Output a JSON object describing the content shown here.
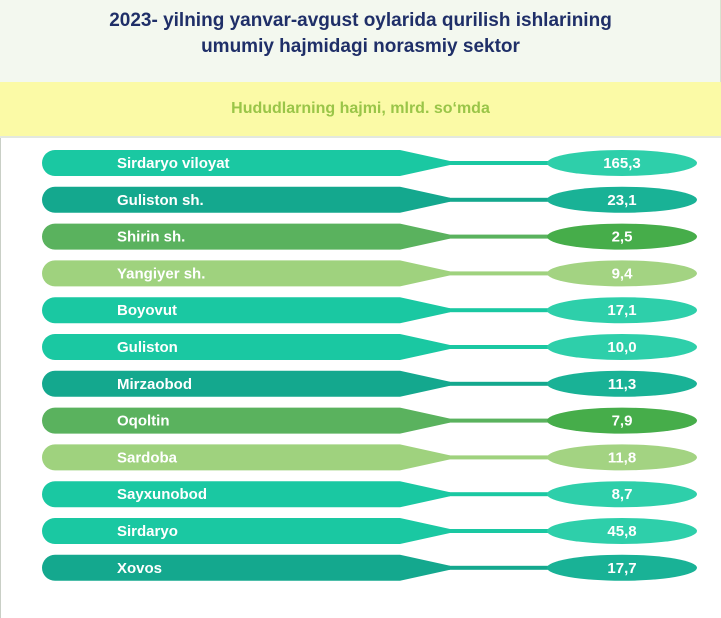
{
  "title_lines": [
    "2023- yilning yanvar-avgust oylarida qurilish ishlarining",
    "umumiy hajmidagi norasmiy sektor"
  ],
  "subtitle": "Hududlarning hajmi, mlrd. so‘mda",
  "chart_data": {
    "type": "table",
    "title": "2023- yilning yanvar-avgust oylarida qurilish ishlarining umumiy hajmidagi norasmiy sektor",
    "subtitle": "Hududlarning hajmi, mlrd. so‘mda",
    "categories": [
      "Sirdaryo viloyat",
      "Guliston sh.",
      "Shirin sh.",
      "Yangiyer sh.",
      "Boyovut",
      "Guliston",
      "Mirzaobod",
      "Oqoltin",
      "Sardoba",
      "Sayxunobod",
      "Sirdaryo",
      "Xovos"
    ],
    "values": [
      "165,3",
      "23,1",
      "2,5",
      "9,4",
      "17,1",
      "10,0",
      "11,3",
      "7,9",
      "11,8",
      "8,7",
      "45,8",
      "17,7"
    ]
  },
  "colors": {
    "rows": [
      {
        "bar": "#1ac8a2",
        "pill": "#2ecfaa"
      },
      {
        "bar": "#14a88e",
        "pill": "#19b296"
      },
      {
        "bar": "#5ab25e",
        "pill": "#46ad4a"
      },
      {
        "bar": "#9fd27e",
        "pill": "#a3d382"
      },
      {
        "bar": "#1ac8a2",
        "pill": "#2ecfaa"
      },
      {
        "bar": "#1ac8a2",
        "pill": "#2ecfaa"
      },
      {
        "bar": "#14a88e",
        "pill": "#19b296"
      },
      {
        "bar": "#5ab25e",
        "pill": "#46ad4a"
      },
      {
        "bar": "#9fd27e",
        "pill": "#a3d382"
      },
      {
        "bar": "#1ac8a2",
        "pill": "#2ecfaa"
      },
      {
        "bar": "#1ac8a2",
        "pill": "#2ecfaa"
      },
      {
        "bar": "#14a88e",
        "pill": "#19b296"
      }
    ]
  }
}
